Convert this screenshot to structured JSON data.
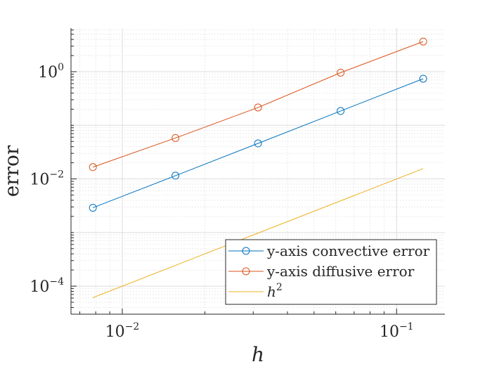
{
  "chart_data": {
    "type": "line",
    "xscale": "log",
    "yscale": "log",
    "xlim": [
      0.0065,
      0.15
    ],
    "ylim": [
      3e-05,
      6.5
    ],
    "xlabel": "h",
    "ylabel": "error",
    "grid": true,
    "minor_grid": true,
    "legend_position": "bottom-right",
    "x_ticks": [
      {
        "value": 0.01,
        "base": "10",
        "exp": "−2"
      },
      {
        "value": 0.1,
        "base": "10",
        "exp": "−1"
      }
    ],
    "y_ticks": [
      {
        "value": 1,
        "base": "10",
        "exp": "0"
      },
      {
        "value": 0.01,
        "base": "10",
        "exp": "−2"
      },
      {
        "value": 0.0001,
        "base": "10",
        "exp": "−4"
      }
    ],
    "x": [
      0.0078125,
      0.015625,
      0.03125,
      0.0625,
      0.125
    ],
    "series": [
      {
        "name": "y-axis convective error",
        "color": "#0072BD",
        "marker": "circle",
        "values": [
          0.0029,
          0.0115,
          0.046,
          0.185,
          0.74
        ]
      },
      {
        "name": "y-axis diffusive error",
        "color": "#D95319",
        "marker": "circle",
        "values": [
          0.0166,
          0.058,
          0.215,
          0.96,
          3.65
        ]
      },
      {
        "name": "h",
        "name_sup": "2",
        "color": "#EDB120",
        "marker": "none",
        "values": [
          6.1e-05,
          0.000244,
          0.000977,
          0.0039,
          0.0156
        ]
      }
    ]
  }
}
